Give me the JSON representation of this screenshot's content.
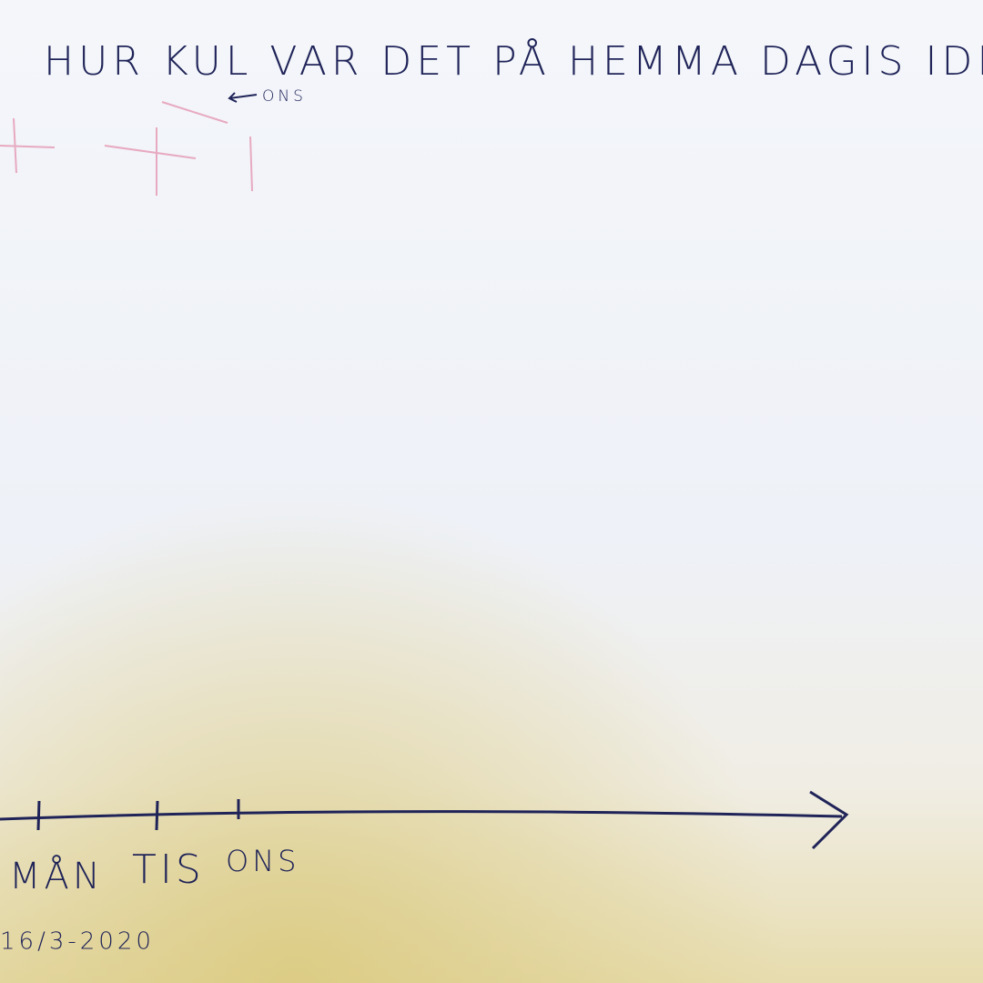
{
  "title": "HUR KUL VAR DET PÅ HEMMA DAGIS IDR",
  "note": "ONS",
  "axis": {
    "labels": [
      "MÅN",
      "TIS",
      "ONS"
    ],
    "date": "16/3-2020"
  }
}
